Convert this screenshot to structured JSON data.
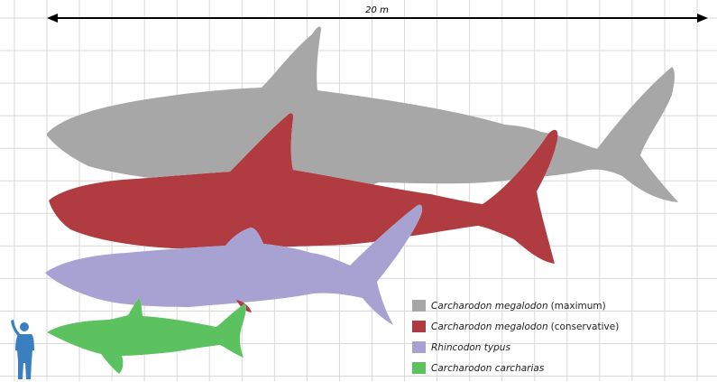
{
  "scale_bar": {
    "label": "20 m"
  },
  "legend": [
    {
      "species": "Carcharodon megalodon",
      "note": "(maximum)",
      "color": "#a7a7a7"
    },
    {
      "species": "Carcharodon megalodon",
      "note": "(conservative)",
      "color": "#b03a3f"
    },
    {
      "species": "Rhincodon typus",
      "note": "",
      "color": "#a8a2d3"
    },
    {
      "species": "Carcharodon carcharias",
      "note": "",
      "color": "#5cc15e"
    }
  ],
  "colors": {
    "grid": "#d9d9d9",
    "human": "#3a7fc0",
    "scale_bar": "#000000"
  },
  "icons": [
    "human-silhouette-icon"
  ]
}
